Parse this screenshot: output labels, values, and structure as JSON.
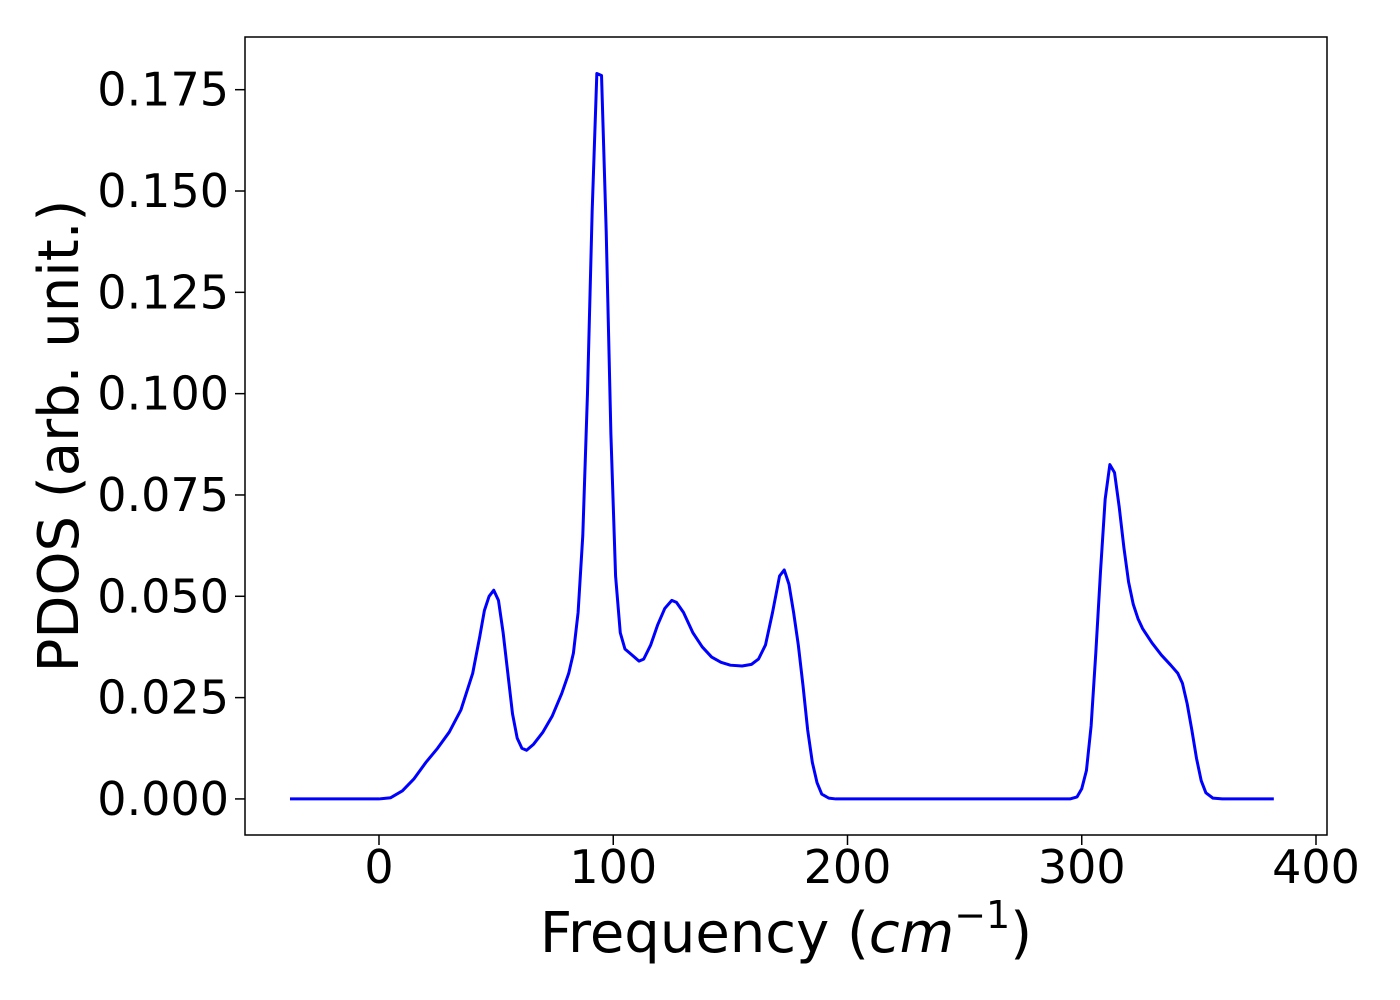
{
  "chart_data": {
    "type": "line",
    "xlabel": {
      "text": "Frequency (",
      "italic": "cm",
      "sup": "−1",
      "end": ")"
    },
    "ylabel": "PDOS (arb. unit.)",
    "color": "#0000ff",
    "x": [
      -38,
      0,
      5,
      10,
      15,
      20,
      25,
      30,
      35,
      40,
      43,
      45,
      47,
      49,
      51,
      53,
      55,
      57,
      59,
      61,
      63,
      66,
      70,
      74,
      78,
      81,
      83,
      85,
      87,
      89,
      91,
      93,
      95,
      97,
      99,
      101,
      103,
      105,
      108,
      111,
      113,
      116,
      119,
      122,
      125,
      127,
      130,
      134,
      138,
      142,
      146,
      150,
      155,
      159,
      162,
      165,
      168,
      171,
      173,
      175,
      177,
      179,
      181,
      183,
      185,
      187,
      189,
      192,
      195,
      295,
      298,
      300,
      302,
      304,
      306,
      308,
      310,
      312,
      314,
      316,
      318,
      320,
      322,
      324,
      326,
      330,
      334,
      338,
      341,
      343,
      345,
      347,
      349,
      351,
      353,
      356,
      360,
      382
    ],
    "values": [
      0,
      0,
      0.0003,
      0.002,
      0.005,
      0.009,
      0.0125,
      0.0165,
      0.022,
      0.031,
      0.04,
      0.0465,
      0.05,
      0.0515,
      0.049,
      0.041,
      0.031,
      0.021,
      0.015,
      0.0125,
      0.012,
      0.0135,
      0.0165,
      0.0205,
      0.026,
      0.031,
      0.036,
      0.046,
      0.065,
      0.1,
      0.145,
      0.179,
      0.1785,
      0.14,
      0.09,
      0.055,
      0.041,
      0.037,
      0.0355,
      0.034,
      0.0345,
      0.038,
      0.043,
      0.047,
      0.049,
      0.0485,
      0.046,
      0.041,
      0.0375,
      0.035,
      0.0337,
      0.033,
      0.0328,
      0.0332,
      0.0345,
      0.038,
      0.046,
      0.055,
      0.0565,
      0.053,
      0.046,
      0.038,
      0.028,
      0.017,
      0.009,
      0.004,
      0.0012,
      0.0002,
      0,
      0,
      0.0005,
      0.0025,
      0.007,
      0.018,
      0.036,
      0.056,
      0.074,
      0.0825,
      0.0805,
      0.072,
      0.062,
      0.0535,
      0.048,
      0.0445,
      0.042,
      0.0385,
      0.0355,
      0.033,
      0.031,
      0.0285,
      0.0235,
      0.017,
      0.01,
      0.0045,
      0.0015,
      0.0002,
      0,
      0
    ],
    "xlim": [
      -57.2,
      404.7
    ],
    "ylim": [
      -0.0089,
      0.188
    ],
    "xticks": [
      0,
      100,
      200,
      300,
      400
    ],
    "yticks": [
      {
        "value": 0,
        "label": "0.000"
      },
      {
        "value": 0.025,
        "label": "0.025"
      },
      {
        "value": 0.05,
        "label": "0.050"
      },
      {
        "value": 0.075,
        "label": "0.075"
      },
      {
        "value": 0.1,
        "label": "0.100"
      },
      {
        "value": 0.125,
        "label": "0.125"
      },
      {
        "value": 0.15,
        "label": "0.150"
      },
      {
        "value": 0.175,
        "label": "0.175"
      }
    ],
    "grid": false
  }
}
